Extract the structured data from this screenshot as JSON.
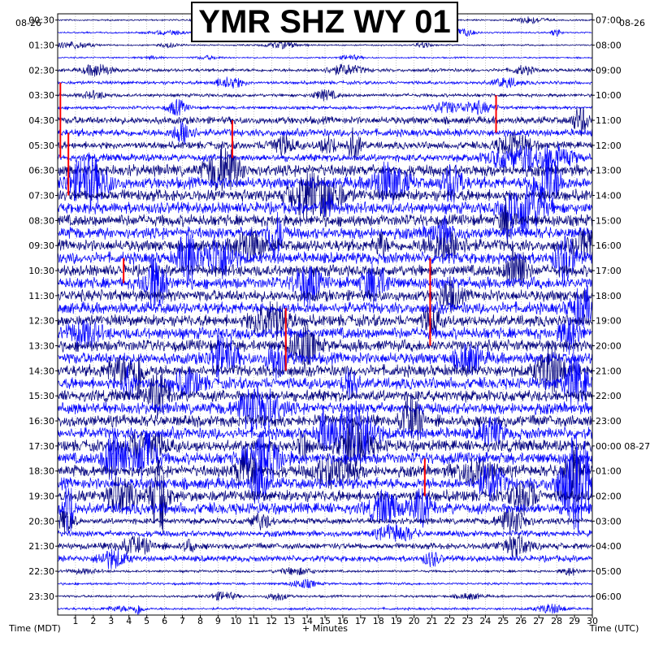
{
  "chart_data": {
    "type": "line",
    "title": "YMR SHZ WY 01",
    "date_left": "08-26",
    "date_right": "08-26",
    "xlabel": "+ Minutes",
    "left_axis_label": "Time (MDT)",
    "right_axis_label": "Time (UTC)",
    "x_ticks": [
      "1",
      "2",
      "3",
      "4",
      "5",
      "6",
      "7",
      "8",
      "9",
      "10",
      "11",
      "12",
      "13",
      "14",
      "15",
      "16",
      "17",
      "18",
      "19",
      "20",
      "21",
      "22",
      "23",
      "24",
      "25",
      "26",
      "27",
      "28",
      "29",
      "30"
    ],
    "xlim": [
      0,
      30
    ],
    "left_times": [
      "00:30",
      "01:30",
      "02:30",
      "03:30",
      "04:30",
      "05:30",
      "06:30",
      "07:30",
      "08:30",
      "09:30",
      "10:30",
      "11:30",
      "12:30",
      "13:30",
      "14:30",
      "15:30",
      "16:30",
      "17:30",
      "18:30",
      "19:30",
      "20:30",
      "21:30",
      "22:30",
      "23:30"
    ],
    "right_times": [
      "07:00",
      "08:00",
      "09:00",
      "10:00",
      "11:00",
      "12:00",
      "13:00",
      "14:00",
      "15:00",
      "16:00",
      "17:00",
      "18:00",
      "19:00",
      "20:00",
      "21:00",
      "22:00",
      "23:00",
      "00:00 08-27",
      "01:00",
      "02:00",
      "03:00",
      "04:00",
      "05:00",
      "06:00"
    ],
    "trace_count": 48,
    "minutes_per_trace": 30,
    "trace_colors": [
      "#00007f",
      "#0000ff"
    ],
    "clip_color": "#ff0000",
    "grid": true
  }
}
